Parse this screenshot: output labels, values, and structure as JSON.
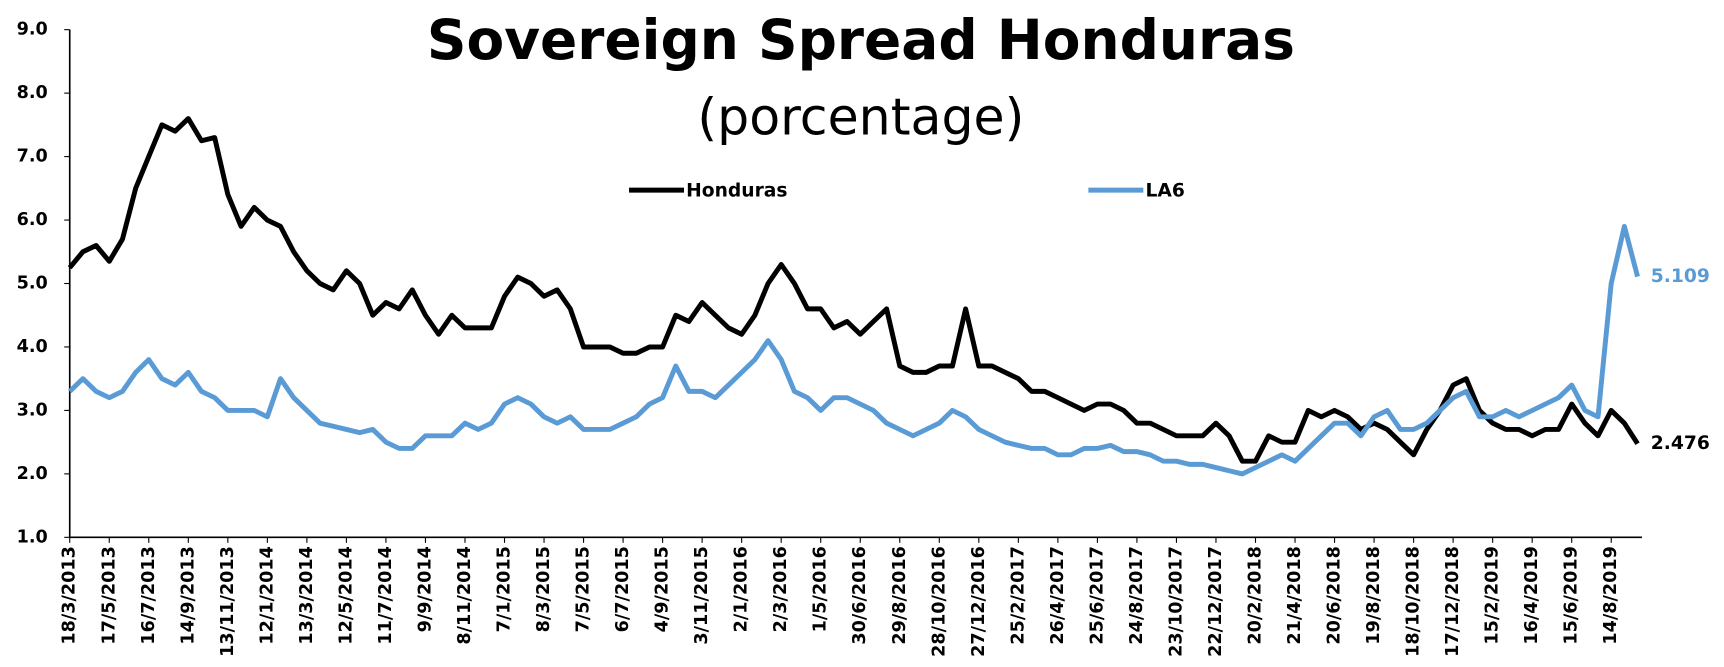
{
  "chart_data": {
    "type": "line",
    "title": "Sovereign Spread Honduras",
    "subtitle": "(porcentage)",
    "categories": [
      "18/3/2013",
      null,
      null,
      "17/5/2013",
      null,
      null,
      "16/7/2013",
      null,
      null,
      "14/9/2013",
      null,
      null,
      "13/11/2013",
      null,
      null,
      "12/1/2014",
      null,
      null,
      "13/3/2014",
      null,
      null,
      "12/5/2014",
      null,
      null,
      "11/7/2014",
      null,
      null,
      "9/9/2014",
      null,
      null,
      "8/11/2014",
      null,
      null,
      "7/1/2015",
      null,
      null,
      "8/3/2015",
      null,
      null,
      "7/5/2015",
      null,
      null,
      "6/7/2015",
      null,
      null,
      "4/9/2015",
      null,
      null,
      "3/11/2015",
      null,
      null,
      "2/1/2016",
      null,
      null,
      "2/3/2016",
      null,
      null,
      "1/5/2016",
      null,
      null,
      "30/6/2016",
      null,
      null,
      "29/8/2016",
      null,
      null,
      "28/10/2016",
      null,
      null,
      "27/12/2016",
      null,
      null,
      "25/2/2017",
      null,
      null,
      "26/4/2017",
      null,
      null,
      "25/6/2017",
      null,
      null,
      "24/8/2017",
      null,
      null,
      "23/10/2017",
      null,
      null,
      "22/12/2017",
      null,
      null,
      "20/2/2018",
      null,
      null,
      "21/4/2018",
      null,
      null,
      "20/6/2018",
      null,
      null,
      "19/8/2018",
      null,
      null,
      "18/10/2018",
      null,
      null,
      "17/12/2018",
      null,
      null,
      "15/2/2019",
      null,
      null,
      "16/4/2019",
      null,
      null,
      "15/6/2019",
      null,
      null,
      "14/8/2019",
      null,
      null
    ],
    "series": [
      {
        "name": "Honduras",
        "color": "#000000",
        "values": [
          5.25,
          5.5,
          5.6,
          5.35,
          5.7,
          6.5,
          7.0,
          7.5,
          7.4,
          7.6,
          7.25,
          7.3,
          6.4,
          5.9,
          6.2,
          6.0,
          5.9,
          5.5,
          5.2,
          5.0,
          4.9,
          5.2,
          5.0,
          4.5,
          4.7,
          4.6,
          4.9,
          4.5,
          4.2,
          4.5,
          4.3,
          4.3,
          4.3,
          4.8,
          5.1,
          5.0,
          4.8,
          4.9,
          4.6,
          4.0,
          4.0,
          4.0,
          3.9,
          3.9,
          4.0,
          4.0,
          4.5,
          4.4,
          4.7,
          4.5,
          4.3,
          4.2,
          4.5,
          5.0,
          5.3,
          5.0,
          4.6,
          4.6,
          4.3,
          4.4,
          4.2,
          4.4,
          4.6,
          3.7,
          3.6,
          3.6,
          3.7,
          3.7,
          4.6,
          3.7,
          3.7,
          3.6,
          3.5,
          3.3,
          3.3,
          3.2,
          3.1,
          3.0,
          3.1,
          3.1,
          3.0,
          2.8,
          2.8,
          2.7,
          2.6,
          2.6,
          2.6,
          2.8,
          2.6,
          2.2,
          2.2,
          2.6,
          2.5,
          2.5,
          3.0,
          2.9,
          3.0,
          2.9,
          2.7,
          2.8,
          2.7,
          2.5,
          2.3,
          2.7,
          3.0,
          3.4,
          3.5,
          3.0,
          2.8,
          2.7,
          2.7,
          2.6,
          2.7,
          2.7,
          3.1,
          2.8,
          2.6,
          3.0,
          2.8,
          2.476
        ]
      },
      {
        "name": "LA6",
        "color": "#5b9bd5",
        "values": [
          3.3,
          3.5,
          3.3,
          3.2,
          3.3,
          3.6,
          3.8,
          3.5,
          3.4,
          3.6,
          3.3,
          3.2,
          3.0,
          3.0,
          3.0,
          2.9,
          3.5,
          3.2,
          3.0,
          2.8,
          2.75,
          2.7,
          2.65,
          2.7,
          2.5,
          2.4,
          2.4,
          2.6,
          2.6,
          2.6,
          2.8,
          2.7,
          2.8,
          3.1,
          3.2,
          3.1,
          2.9,
          2.8,
          2.9,
          2.7,
          2.7,
          2.7,
          2.8,
          2.9,
          3.1,
          3.2,
          3.7,
          3.3,
          3.3,
          3.2,
          3.4,
          3.6,
          3.8,
          4.1,
          3.8,
          3.3,
          3.2,
          3.0,
          3.2,
          3.2,
          3.1,
          3.0,
          2.8,
          2.7,
          2.6,
          2.7,
          2.8,
          3.0,
          2.9,
          2.7,
          2.6,
          2.5,
          2.45,
          2.4,
          2.4,
          2.3,
          2.3,
          2.4,
          2.4,
          2.45,
          2.35,
          2.35,
          2.3,
          2.2,
          2.2,
          2.15,
          2.15,
          2.1,
          2.05,
          2.0,
          2.1,
          2.2,
          2.3,
          2.2,
          2.4,
          2.6,
          2.8,
          2.8,
          2.6,
          2.9,
          3.0,
          2.7,
          2.7,
          2.8,
          3.0,
          3.2,
          3.3,
          2.9,
          2.9,
          3.0,
          2.9,
          3.0,
          3.1,
          3.2,
          3.4,
          3.0,
          2.9,
          5.0,
          5.9,
          5.109
        ]
      }
    ],
    "ylim": [
      1,
      9
    ],
    "yticks": [
      {
        "value": 1,
        "label": "1.0"
      },
      {
        "value": 2,
        "label": "2.0"
      },
      {
        "value": 3,
        "label": "3.0"
      },
      {
        "value": 4,
        "label": "4.0"
      },
      {
        "value": 5,
        "label": "5.0"
      },
      {
        "value": 6,
        "label": "6.0"
      },
      {
        "value": 7,
        "label": "7.0"
      },
      {
        "value": 8,
        "label": "8.0"
      },
      {
        "value": 9,
        "label": "9.0"
      }
    ],
    "grid": false
  }
}
